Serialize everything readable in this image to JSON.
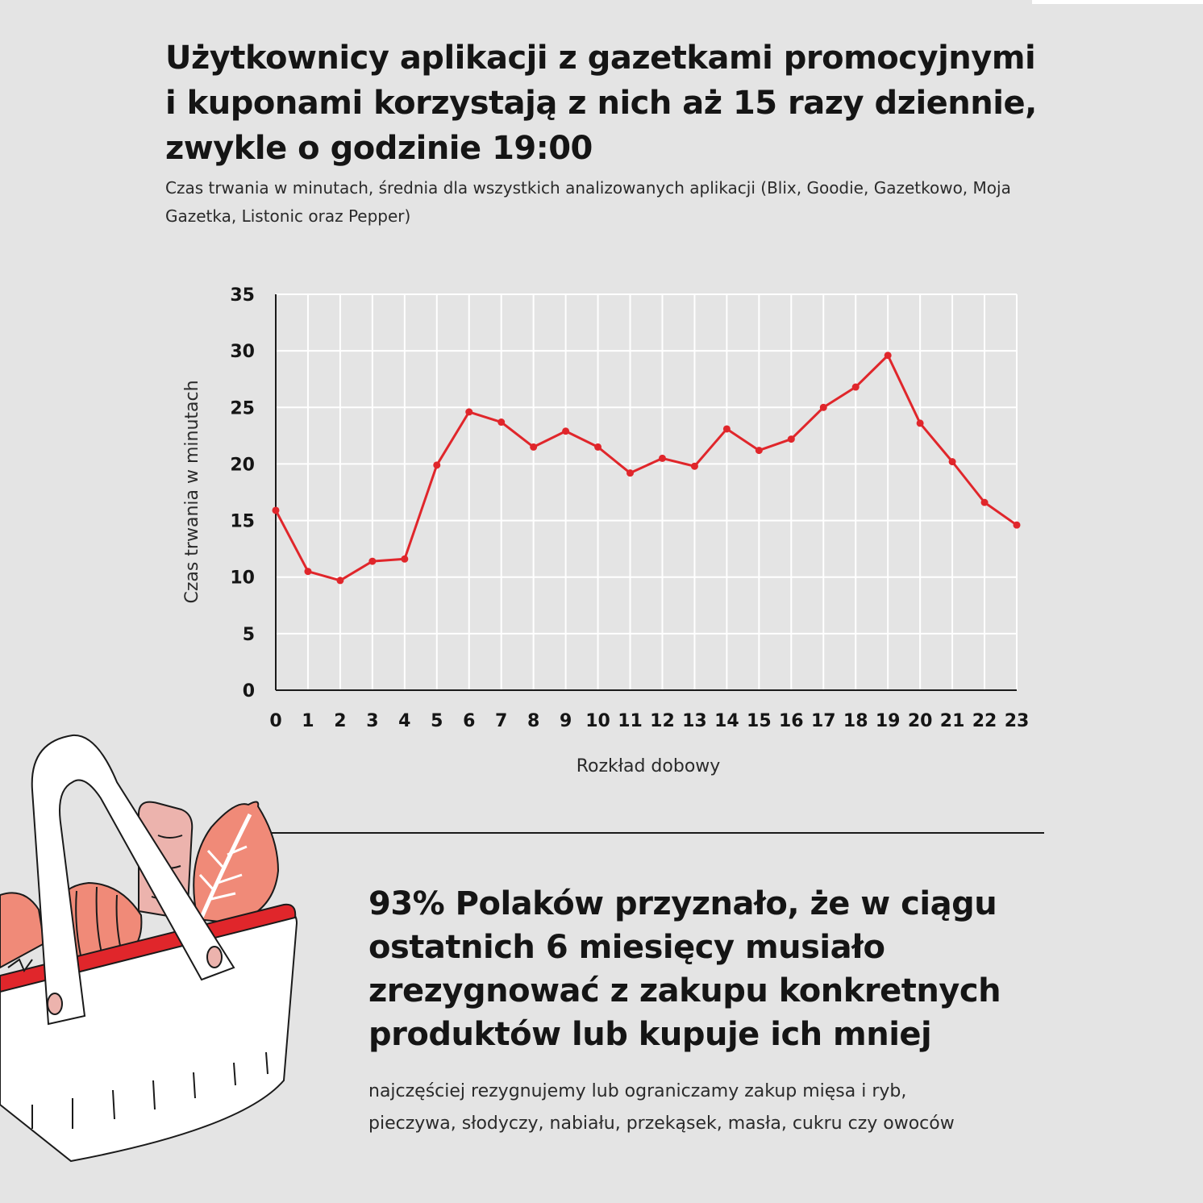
{
  "header": {
    "title_lines": [
      "Użytkownicy aplikacji z gazetkami promocyjnymi",
      "i kuponami korzystają z nich aż 15 razy dziennie,",
      "zwykle o godzinie 19:00"
    ],
    "subtitle_lines": [
      "Czas trwania w minutach, średnia dla wszystkich analizowanych aplikacji (Blix, Goodie, Gazetkowo, Moja",
      "Gazetka, Listonic oraz Pepper)"
    ]
  },
  "chart_data": {
    "type": "line",
    "title": "",
    "xlabel": "Rozkład dobowy",
    "ylabel": "Czas trwania w minutach",
    "x": [
      0,
      1,
      2,
      3,
      4,
      5,
      6,
      7,
      8,
      9,
      10,
      11,
      12,
      13,
      14,
      15,
      16,
      17,
      18,
      19,
      20,
      21,
      22,
      23
    ],
    "y": [
      15.9,
      10.5,
      9.7,
      11.4,
      11.6,
      19.9,
      24.6,
      23.7,
      21.5,
      22.9,
      21.5,
      19.2,
      20.5,
      19.8,
      23.1,
      21.2,
      22.2,
      25.0,
      26.8,
      29.6,
      23.6,
      20.2,
      16.6,
      14.6
    ],
    "ylim": [
      0,
      35
    ],
    "yticks": [
      0,
      5,
      10,
      15,
      20,
      25,
      30,
      35
    ],
    "grid": true,
    "legend": "none",
    "line_color": "#e0262b",
    "grid_color": "#ffffff",
    "axis_color": "#1a1a1a"
  },
  "stat": {
    "heading_lines": [
      "93% Polaków przyznało, że w ciągu",
      "ostatnich 6 miesięcy musiało",
      "zrezygnować z zakupu konkretnych",
      "produktów lub kupuje ich mniej"
    ],
    "note_lines": [
      "najczęściej rezygnujemy lub ograniczamy zakup mięsa i ryb,",
      "pieczywa, słodyczy, nabiału, przekąsek, masła, cukru czy owoców"
    ]
  },
  "illustration": {
    "icon": "shopping-basket-icon",
    "colors": {
      "accent": "#e0262b",
      "salmon": "#f08a78",
      "pink": "#ecb3ad",
      "outline": "#1a1a1a",
      "basket": "#ffffff"
    }
  }
}
